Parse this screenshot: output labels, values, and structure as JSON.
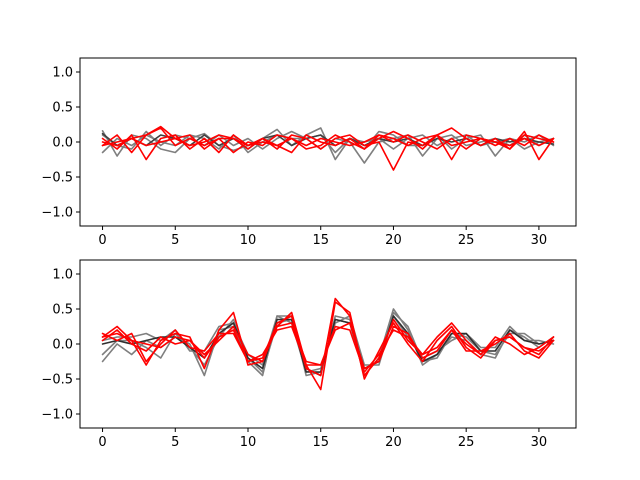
{
  "chart_data": [
    {
      "type": "line",
      "title": "",
      "xlabel": "",
      "ylabel": "",
      "xlim": [
        -1.55,
        32.55
      ],
      "ylim": [
        -1.2,
        1.2
      ],
      "grid": false,
      "legend": "none",
      "x_ticks": [
        0,
        5,
        10,
        15,
        20,
        25,
        30
      ],
      "y_ticks": [
        -1.0,
        -0.5,
        0.0,
        0.5,
        1.0
      ],
      "x_tick_labels": [
        "0",
        "5",
        "10",
        "15",
        "20",
        "25",
        "30"
      ],
      "y_tick_labels": [
        "−1.0",
        "−0.5",
        "0.0",
        "0.5",
        "1.0"
      ],
      "x": [
        0,
        1,
        2,
        3,
        4,
        5,
        6,
        7,
        8,
        9,
        10,
        11,
        12,
        13,
        14,
        15,
        16,
        17,
        18,
        19,
        20,
        21,
        22,
        23,
        24,
        25,
        26,
        27,
        28,
        29,
        30,
        31
      ],
      "series": [
        {
          "color": "#7f7f7f",
          "values": [
            0.16,
            -0.2,
            0.1,
            0.05,
            -0.1,
            -0.15,
            0.05,
            0.12,
            -0.05,
            -0.12,
            -0.05,
            0.05,
            0.18,
            -0.05,
            0.1,
            0.2,
            -0.25,
            0.05,
            -0.1,
            0.15,
            0.1,
            -0.05,
            -0.05,
            0.1,
            -0.1,
            0.05,
            0.1,
            -0.2,
            0.05,
            0.0,
            0.1,
            -0.05
          ]
        },
        {
          "color": "#7f7f7f",
          "values": [
            -0.15,
            0.05,
            -0.05,
            0.1,
            0.0,
            -0.05,
            0.1,
            0.05,
            -0.1,
            0.1,
            -0.15,
            0.0,
            0.1,
            0.05,
            0.05,
            -0.1,
            0.05,
            0.0,
            -0.3,
            0.0,
            0.05,
            0.1,
            -0.2,
            0.05,
            0.1,
            -0.05,
            0.0,
            0.05,
            -0.05,
            0.1,
            -0.05,
            0.05
          ]
        },
        {
          "color": "#7f7f7f",
          "values": [
            0.1,
            -0.05,
            -0.1,
            0.15,
            -0.05,
            0.1,
            0.05,
            -0.05,
            0.1,
            -0.05,
            0.05,
            -0.1,
            0.05,
            0.15,
            0.05,
            0.1,
            -0.15,
            0.05,
            0.0,
            0.05,
            -0.1,
            0.05,
            0.1,
            -0.05,
            0.05,
            0.1,
            -0.05,
            0.0,
            0.05,
            -0.1,
            0.0,
            0.05
          ]
        },
        {
          "color": "#3f3f3f",
          "values": [
            0.12,
            -0.05,
            0.05,
            -0.05,
            0.1,
            0.05,
            -0.05,
            0.1,
            -0.05,
            0.05,
            -0.1,
            0.05,
            0.1,
            -0.05,
            0.05,
            0.1,
            -0.05,
            0.05,
            -0.05,
            0.05,
            0.0,
            0.05,
            -0.05,
            0.05,
            0.0,
            0.05,
            -0.05,
            0.05,
            0.0,
            0.05,
            0.0,
            -0.03
          ]
        },
        {
          "color": "#ff0000",
          "values": [
            -0.05,
            0.1,
            -0.15,
            0.1,
            0.22,
            0.05,
            -0.05,
            0.0,
            0.1,
            0.05,
            -0.1,
            0.05,
            -0.1,
            0.1,
            0.05,
            -0.1,
            0.05,
            0.1,
            -0.05,
            0.0,
            -0.4,
            0.0,
            -0.05,
            0.1,
            -0.25,
            0.1,
            0.05,
            0.0,
            -0.1,
            0.15,
            -0.25,
            0.05
          ]
        },
        {
          "color": "#ff0000",
          "values": [
            0.05,
            -0.1,
            0.1,
            -0.25,
            0.05,
            0.1,
            -0.1,
            0.05,
            -0.15,
            0.1,
            -0.05,
            0.05,
            -0.05,
            -0.15,
            0.1,
            0.0,
            -0.05,
            0.05,
            -0.1,
            0.05,
            0.15,
            0.05,
            -0.1,
            0.1,
            0.2,
            0.05,
            -0.05,
            0.05,
            -0.1,
            0.1,
            0.05,
            0.0
          ]
        },
        {
          "color": "#ff0000",
          "values": [
            0.0,
            -0.05,
            0.05,
            0.1,
            0.2,
            -0.05,
            0.05,
            -0.05,
            0.05,
            -0.15,
            0.0,
            -0.05,
            0.1,
            0.05,
            -0.1,
            -0.05,
            0.1,
            0.0,
            -0.1,
            0.1,
            0.0,
            0.1,
            0.0,
            -0.1,
            0.05,
            -0.1,
            0.05,
            -0.05,
            0.05,
            -0.05,
            0.1,
            0.0
          ]
        },
        {
          "color": "#ff0000",
          "values": [
            -0.05,
            0.0,
            0.05,
            -0.05,
            0.0,
            0.05,
            0.1,
            -0.1,
            0.05,
            0.05,
            -0.05,
            0.0,
            -0.05,
            0.05,
            -0.05,
            0.05,
            0.0,
            -0.05,
            0.0,
            0.1,
            0.05,
            -0.05,
            0.05,
            0.1,
            -0.05,
            0.0,
            0.05,
            0.0,
            -0.05,
            0.05,
            -0.05,
            0.05
          ]
        }
      ]
    },
    {
      "type": "line",
      "title": "",
      "xlabel": "",
      "ylabel": "",
      "xlim": [
        -1.55,
        32.55
      ],
      "ylim": [
        -1.2,
        1.2
      ],
      "grid": false,
      "legend": "none",
      "x_ticks": [
        0,
        5,
        10,
        15,
        20,
        25,
        30
      ],
      "y_ticks": [
        -1.0,
        -0.5,
        0.0,
        0.5,
        1.0
      ],
      "x_tick_labels": [
        "0",
        "5",
        "10",
        "15",
        "20",
        "25",
        "30"
      ],
      "y_tick_labels": [
        "−1.0",
        "−0.5",
        "0.0",
        "0.5",
        "1.0"
      ],
      "x": [
        0,
        1,
        2,
        3,
        4,
        5,
        6,
        7,
        8,
        9,
        10,
        11,
        12,
        13,
        14,
        15,
        16,
        17,
        18,
        19,
        20,
        21,
        22,
        23,
        24,
        25,
        26,
        27,
        28,
        29,
        30,
        31
      ],
      "series": [
        {
          "color": "#7f7f7f",
          "values": [
            -0.25,
            0.0,
            -0.15,
            0.05,
            -0.05,
            0.1,
            0.0,
            -0.45,
            0.2,
            0.25,
            -0.25,
            -0.45,
            0.4,
            0.4,
            -0.45,
            -0.4,
            0.35,
            0.3,
            -0.45,
            -0.2,
            0.5,
            0.2,
            -0.3,
            -0.15,
            0.1,
            0.05,
            -0.15,
            -0.2,
            0.2,
            0.1,
            -0.05,
            0.1
          ]
        },
        {
          "color": "#7f7f7f",
          "values": [
            -0.15,
            0.05,
            0.05,
            -0.05,
            -0.2,
            0.15,
            -0.05,
            -0.3,
            0.1,
            0.35,
            -0.2,
            -0.4,
            0.3,
            0.35,
            -0.35,
            -0.45,
            0.4,
            0.35,
            -0.35,
            -0.25,
            0.45,
            0.25,
            -0.25,
            -0.2,
            0.15,
            0.1,
            -0.1,
            -0.15,
            0.15,
            0.15,
            0.0,
            0.05
          ]
        },
        {
          "color": "#7f7f7f",
          "values": [
            0.05,
            0.1,
            0.1,
            0.15,
            0.05,
            0.2,
            -0.1,
            -0.1,
            0.25,
            0.3,
            -0.15,
            -0.3,
            0.4,
            0.3,
            -0.4,
            -0.35,
            0.3,
            0.4,
            -0.3,
            -0.3,
            0.4,
            0.1,
            -0.2,
            -0.1,
            0.05,
            0.15,
            -0.05,
            -0.05,
            0.25,
            0.05,
            0.05,
            0.0
          ]
        },
        {
          "color": "#2f2f2f",
          "values": [
            0.0,
            0.05,
            0.0,
            0.05,
            0.1,
            0.1,
            -0.05,
            -0.2,
            0.15,
            0.3,
            -0.2,
            -0.35,
            0.35,
            0.35,
            -0.4,
            -0.4,
            0.35,
            0.3,
            -0.35,
            -0.25,
            0.4,
            0.15,
            -0.25,
            -0.15,
            0.15,
            0.15,
            -0.1,
            -0.1,
            0.2,
            0.05,
            0.0,
            0.05
          ]
        },
        {
          "color": "#ff0000",
          "values": [
            0.1,
            0.25,
            0.05,
            -0.3,
            0.05,
            0.15,
            0.1,
            -0.35,
            0.2,
            0.45,
            -0.3,
            -0.25,
            0.25,
            0.45,
            -0.3,
            -0.65,
            0.6,
            0.45,
            -0.45,
            -0.2,
            0.35,
            0.05,
            -0.15,
            0.1,
            0.3,
            0.05,
            -0.15,
            0.1,
            0.0,
            -0.15,
            -0.05,
            0.1
          ]
        },
        {
          "color": "#ff0000",
          "values": [
            0.15,
            0.05,
            0.15,
            -0.25,
            0.0,
            0.2,
            -0.05,
            -0.1,
            0.15,
            0.15,
            -0.25,
            -0.2,
            0.3,
            0.4,
            -0.35,
            -0.45,
            0.65,
            0.4,
            -0.5,
            -0.1,
            0.3,
            0.0,
            -0.25,
            0.05,
            0.25,
            -0.05,
            -0.2,
            0.05,
            0.1,
            -0.05,
            -0.15,
            0.1
          ]
        },
        {
          "color": "#ff0000",
          "values": [
            0.05,
            0.2,
            0.0,
            -0.1,
            0.1,
            0.0,
            0.05,
            -0.15,
            0.05,
            0.25,
            -0.15,
            -0.25,
            0.25,
            0.3,
            -0.25,
            -0.3,
            0.2,
            0.3,
            -0.35,
            -0.25,
            0.25,
            0.15,
            -0.2,
            -0.1,
            0.2,
            -0.1,
            -0.1,
            0.0,
            0.15,
            -0.1,
            -0.2,
            0.05
          ]
        },
        {
          "color": "#ff0000",
          "values": [
            0.1,
            0.15,
            0.05,
            0.0,
            -0.05,
            0.1,
            0.05,
            -0.2,
            0.1,
            0.2,
            -0.25,
            -0.15,
            0.2,
            0.25,
            -0.3,
            -0.3,
            0.25,
            0.2,
            -0.4,
            -0.15,
            0.2,
            0.1,
            -0.15,
            -0.05,
            0.2,
            0.0,
            -0.15,
            0.05,
            0.1,
            -0.05,
            -0.1,
            0.05
          ]
        }
      ]
    }
  ]
}
